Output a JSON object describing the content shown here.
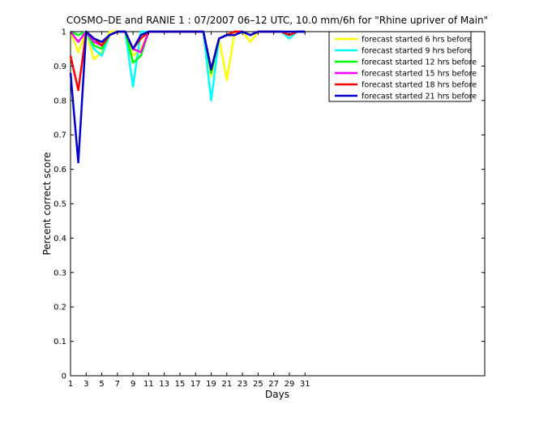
{
  "chart_data": {
    "type": "line",
    "title": "COSMO–DE and RANIE 1 : 07/2007 06–12 UTC, 10.0 mm/6h for \"Rhine upriver of Main\"",
    "xlabel": "Days",
    "ylabel": "Percent correct score",
    "xlim": [
      1,
      54
    ],
    "ylim": [
      0,
      1
    ],
    "xticks": [
      1,
      3,
      5,
      7,
      9,
      11,
      13,
      15,
      17,
      19,
      21,
      23,
      25,
      27,
      29,
      31
    ],
    "yticks": [
      0,
      0.1,
      0.2,
      0.3,
      0.4,
      0.5,
      0.6,
      0.7,
      0.8,
      0.9,
      1
    ],
    "ytick_labels": [
      "0",
      "0.1",
      "0.2",
      "0.3",
      "0.4",
      "0.5",
      "0.6",
      "0.7",
      "0.8",
      "0.9",
      "1"
    ],
    "legend_position": "top-right",
    "x": [
      1,
      2,
      3,
      4,
      5,
      6,
      7,
      8,
      9,
      10,
      11,
      12,
      13,
      14,
      15,
      16,
      17,
      18,
      19,
      20,
      21,
      22,
      23,
      24,
      25,
      26,
      27,
      28,
      29,
      30,
      31
    ],
    "series": [
      {
        "name": "forecast started 6 hrs before",
        "color": "#ffff00",
        "values": [
          1,
          0.94,
          1,
          0.92,
          0.94,
          1,
          1,
          1,
          0.93,
          0.95,
          1,
          1,
          1,
          1,
          1,
          1,
          1,
          1,
          0.87,
          0.98,
          0.86,
          1,
          1,
          0.97,
          1,
          1,
          1,
          1,
          0.99,
          1,
          1
        ]
      },
      {
        "name": "forecast started 9 hrs before",
        "color": "#00ffff",
        "values": [
          1,
          0.99,
          1,
          0.95,
          0.93,
          0.99,
          1,
          1,
          0.84,
          1,
          1,
          1,
          1,
          1,
          1,
          1,
          1,
          1,
          0.8,
          0.98,
          0.99,
          1,
          1,
          0.99,
          1,
          1,
          1,
          1,
          0.98,
          1,
          1
        ]
      },
      {
        "name": "forecast started 12 hrs before",
        "color": "#00ff00",
        "values": [
          1,
          0.99,
          1,
          0.96,
          0.95,
          0.99,
          1,
          1,
          0.91,
          0.93,
          1,
          1,
          1,
          1,
          1,
          1,
          1,
          1,
          0.88,
          0.98,
          0.99,
          1,
          1,
          0.99,
          1,
          1,
          1,
          1,
          0.99,
          1,
          1
        ]
      },
      {
        "name": "forecast started 15 hrs before",
        "color": "#ff00ff",
        "values": [
          1,
          0.97,
          1,
          0.97,
          0.96,
          0.99,
          1,
          1,
          0.95,
          0.94,
          1,
          1,
          1,
          1,
          1,
          1,
          1,
          1,
          0.89,
          0.98,
          0.99,
          1,
          1,
          0.99,
          1,
          1,
          1,
          1,
          0.99,
          1,
          1
        ]
      },
      {
        "name": "forecast started 18 hrs before",
        "color": "#ff0000",
        "values": [
          0.93,
          0.83,
          1,
          0.98,
          0.96,
          0.99,
          1,
          1,
          0.95,
          0.98,
          1,
          1,
          1,
          1,
          1,
          1,
          1,
          1,
          0.89,
          0.98,
          0.99,
          1,
          1,
          0.99,
          1,
          1,
          1,
          1,
          0.99,
          1,
          1
        ]
      },
      {
        "name": "forecast started 21 hrs before",
        "color": "#0000cc",
        "values": [
          0.88,
          0.62,
          1,
          0.98,
          0.97,
          0.99,
          1,
          1,
          0.95,
          0.99,
          1,
          1,
          1,
          1,
          1,
          1,
          1,
          1,
          0.89,
          0.98,
          0.99,
          0.99,
          1,
          0.99,
          1,
          1,
          1,
          1,
          1,
          1,
          1
        ]
      }
    ]
  }
}
